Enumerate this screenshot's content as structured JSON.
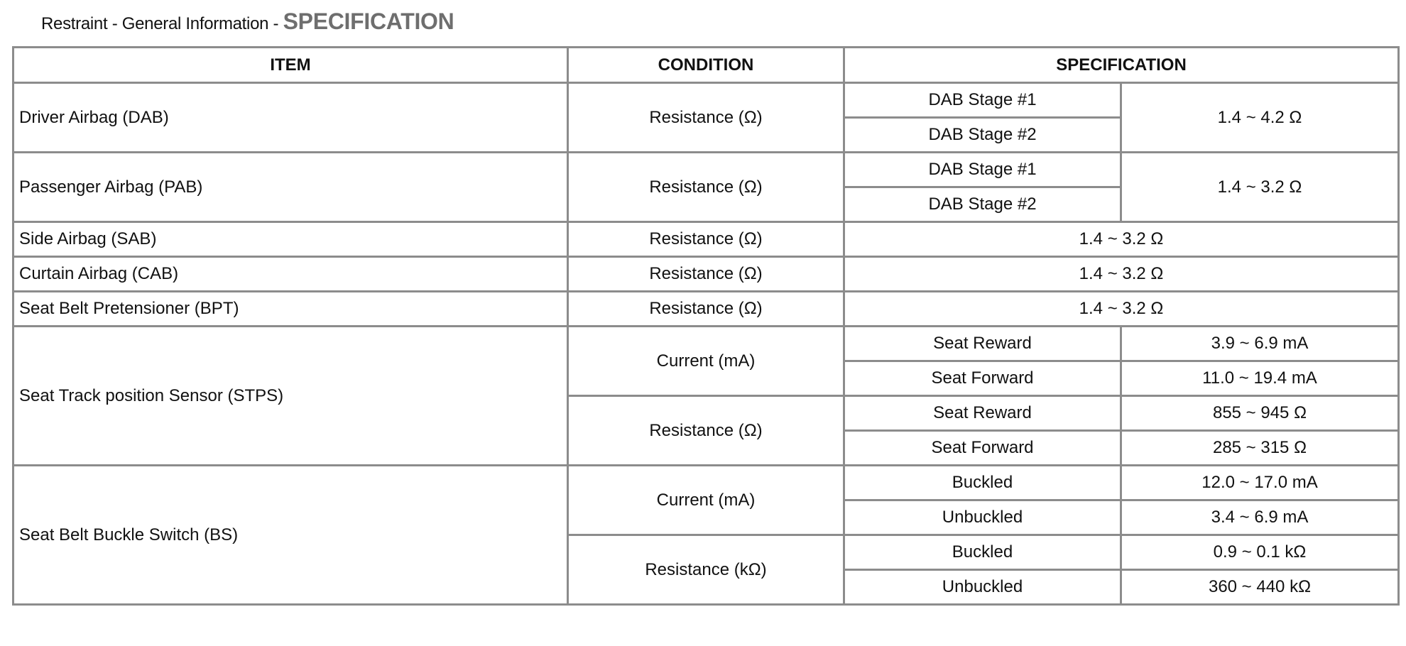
{
  "title": {
    "prefix": "Restraint - General Information - ",
    "main": "SPECIFICATION"
  },
  "headers": {
    "item": "ITEM",
    "condition": "CONDITION",
    "specification": "SPECIFICATION"
  },
  "rows": {
    "dab": {
      "item": "Driver Airbag (DAB)",
      "condition": "Resistance (Ω)",
      "sub1": "DAB Stage #1",
      "sub2": "DAB Stage #2",
      "value": "1.4 ~ 4.2 Ω"
    },
    "pab": {
      "item": "Passenger Airbag (PAB)",
      "condition": "Resistance (Ω)",
      "sub1": "DAB Stage #1",
      "sub2": "DAB Stage #2",
      "value": "1.4 ~ 3.2 Ω"
    },
    "sab": {
      "item": "Side Airbag (SAB)",
      "condition": "Resistance (Ω)",
      "value": "1.4 ~ 3.2 Ω"
    },
    "cab": {
      "item": "Curtain Airbag (CAB)",
      "condition": "Resistance (Ω)",
      "value": "1.4 ~ 3.2 Ω"
    },
    "bpt": {
      "item": "Seat Belt Pretensioner (BPT)",
      "condition": "Resistance (Ω)",
      "value": "1.4 ~ 3.2 Ω"
    },
    "stps": {
      "item": "Seat Track position Sensor (STPS)",
      "c1": "Current (mA)",
      "c1s1": "Seat Reward",
      "c1v1": "3.9 ~ 6.9 mA",
      "c1s2": "Seat Forward",
      "c1v2": "11.0 ~ 19.4 mA",
      "c2": "Resistance (Ω)",
      "c2s1": "Seat Reward",
      "c2v1": "855 ~ 945 Ω",
      "c2s2": "Seat Forward",
      "c2v2": "285 ~ 315 Ω"
    },
    "bs": {
      "item": "Seat Belt Buckle Switch (BS)",
      "c1": "Current (mA)",
      "c1s1": "Buckled",
      "c1v1": "12.0 ~ 17.0 mA",
      "c1s2": "Unbuckled",
      "c1v2": "3.4 ~ 6.9 mA",
      "c2": "Resistance (kΩ)",
      "c2s1": "Buckled",
      "c2v1": "0.9 ~ 0.1 kΩ",
      "c2s2": "Unbuckled",
      "c2v2": "360 ~ 440 kΩ"
    }
  }
}
